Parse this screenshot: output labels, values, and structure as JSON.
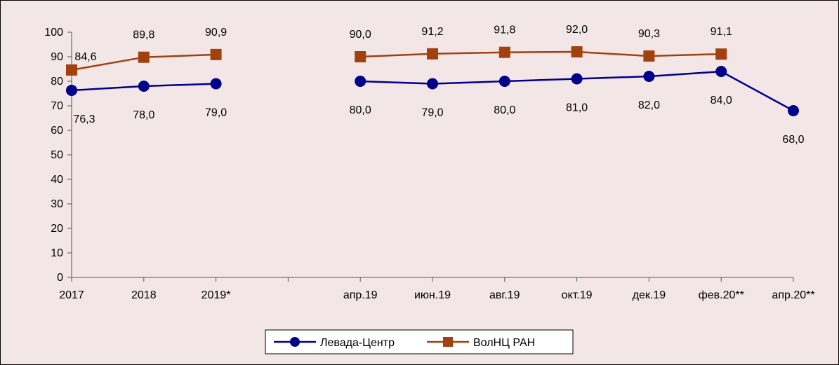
{
  "chart_data": {
    "type": "line",
    "categories": [
      "2017",
      "2018",
      "2019*",
      "",
      "апр.19",
      "июн.19",
      "авг.19",
      "окт.19",
      "дек.19",
      "фев.20**",
      "апр.20**"
    ],
    "ylim": [
      0,
      100
    ],
    "yticks": [
      0,
      10,
      20,
      30,
      40,
      50,
      60,
      70,
      80,
      90,
      100
    ],
    "grid": false,
    "legend_position": "bottom",
    "series": [
      {
        "name": "Левада-Центр",
        "color": "#00008b",
        "marker": "circle",
        "values": [
          76.3,
          78.0,
          79.0,
          null,
          80.0,
          79.0,
          80.0,
          81.0,
          82.0,
          84.0,
          68.0
        ],
        "labels": [
          "76,3",
          "78,0",
          "79,0",
          "",
          "80,0",
          "79,0",
          "80,0",
          "81,0",
          "82,0",
          "84,0",
          "68,0"
        ]
      },
      {
        "name": "ВолНЦ РАН",
        "color": "#a0410f",
        "marker": "square",
        "values": [
          84.6,
          89.8,
          90.9,
          null,
          90.0,
          91.2,
          91.8,
          92.0,
          90.3,
          91.1,
          null
        ],
        "labels": [
          "84,6",
          "89,8",
          "90,9",
          "",
          "90,0",
          "91,2",
          "91,8",
          "92,0",
          "90,3",
          "91,1",
          ""
        ]
      }
    ]
  }
}
